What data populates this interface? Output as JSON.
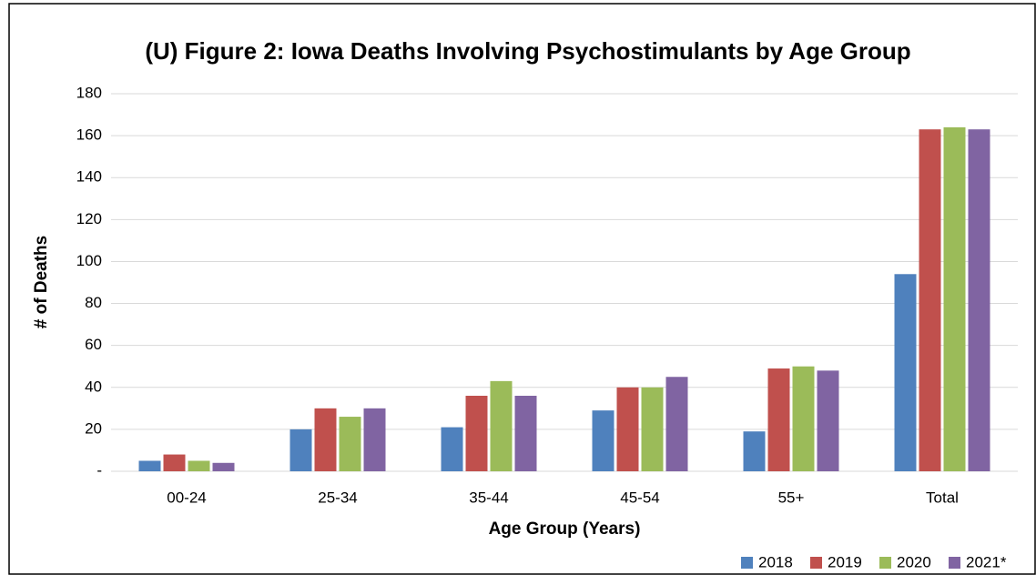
{
  "chart_data": {
    "type": "bar",
    "title": "(U) Figure 2: Iowa Deaths Involving Psychostimulants by Age Group",
    "x_label": "Age Group (Years)",
    "y_label": "# of Deaths",
    "categories": [
      "00-24",
      "25-34",
      "35-44",
      "45-54",
      "55+",
      "Total"
    ],
    "series": [
      {
        "name": "2018",
        "color": "#4f81bd",
        "values": [
          5,
          20,
          21,
          29,
          19,
          94
        ]
      },
      {
        "name": "2019",
        "color": "#c0504d",
        "values": [
          8,
          30,
          36,
          40,
          49,
          163
        ]
      },
      {
        "name": "2020",
        "color": "#9bbb59",
        "values": [
          5,
          26,
          43,
          40,
          50,
          164
        ]
      },
      {
        "name": "2021*",
        "color": "#8064a2",
        "values": [
          4,
          30,
          36,
          45,
          48,
          163
        ]
      }
    ],
    "ylim": [
      0,
      180
    ],
    "yticks": [
      {
        "value": 0,
        "label": "-"
      },
      20,
      40,
      60,
      80,
      100,
      120,
      140,
      160,
      180
    ],
    "grid": true,
    "legend": "bottom-right"
  }
}
